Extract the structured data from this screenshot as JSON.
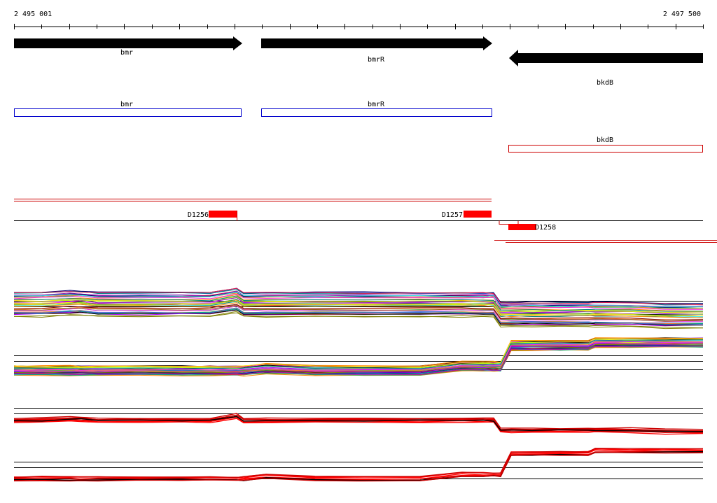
{
  "ruler": {
    "start_label": "2 495 001",
    "end_label": "2 497 500"
  },
  "genes": [
    {
      "name": "bmr",
      "strand": "+"
    },
    {
      "name": "bmrR",
      "strand": "+"
    },
    {
      "name": "bkdB",
      "strand": "-"
    }
  ],
  "boxes": [
    {
      "name": "bmr",
      "color": "#0000cc"
    },
    {
      "name": "bmrR",
      "color": "#0000cc"
    },
    {
      "name": "bkdB",
      "color": "#cc0000"
    }
  ],
  "features": [
    {
      "label": "D1256"
    },
    {
      "label": "D1257"
    },
    {
      "label": "D1258"
    }
  ],
  "colors": {
    "arrow": "#000000",
    "feature": "#ff0000",
    "baseline": "#000000",
    "profile_palette": [
      "#e6194b",
      "#3cb44b",
      "#ffe119",
      "#4363d8",
      "#f58231",
      "#911eb4",
      "#46f0f0",
      "#f032e6",
      "#bcf60c",
      "#008080",
      "#9a6324",
      "#800000",
      "#000075",
      "#808000",
      "#000000",
      "#ff8800",
      "#00aa88",
      "#aa00ff"
    ]
  }
}
